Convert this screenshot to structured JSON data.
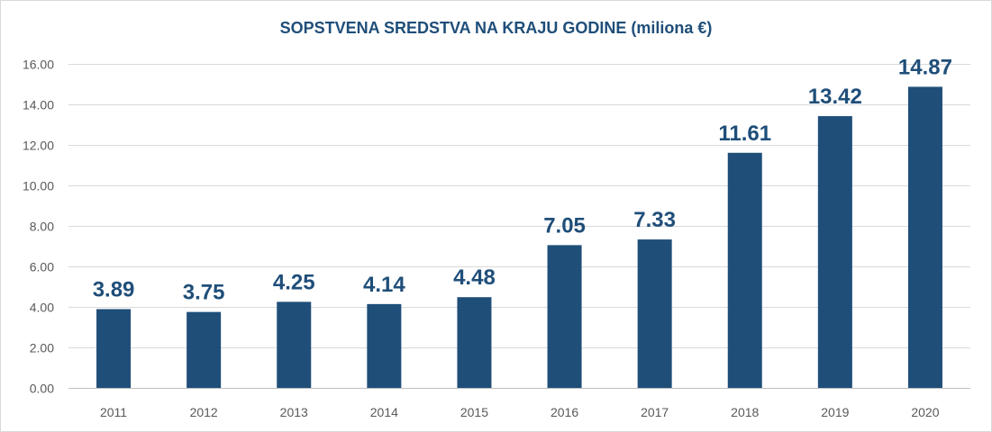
{
  "chart_data": {
    "type": "bar",
    "title": "SOPSTVENA SREDSTVA NA KRAJU GODINE (miliona €)",
    "xlabel": "",
    "ylabel": "",
    "categories": [
      "2011",
      "2012",
      "2013",
      "2014",
      "2015",
      "2016",
      "2017",
      "2018",
      "2019",
      "2020"
    ],
    "values": [
      3.89,
      3.75,
      4.25,
      4.14,
      4.48,
      7.05,
      7.33,
      11.61,
      13.42,
      14.87
    ],
    "value_labels": [
      "3.89",
      "3.75",
      "4.25",
      "4.14",
      "4.48",
      "7.05",
      "7.33",
      "11.61",
      "13.42",
      "14.87"
    ],
    "ylim": [
      0,
      16
    ],
    "y_ticks": [
      "0.00",
      "2.00",
      "4.00",
      "6.00",
      "8.00",
      "10.00",
      "12.00",
      "14.00",
      "16.00"
    ],
    "grid": true,
    "legend": "none",
    "colors": {
      "bar": "#1f4e79",
      "title": "#1f4e79",
      "data_label": "#1f4e79",
      "grid": "#d9d9d9",
      "axis_text": "#595959"
    }
  }
}
